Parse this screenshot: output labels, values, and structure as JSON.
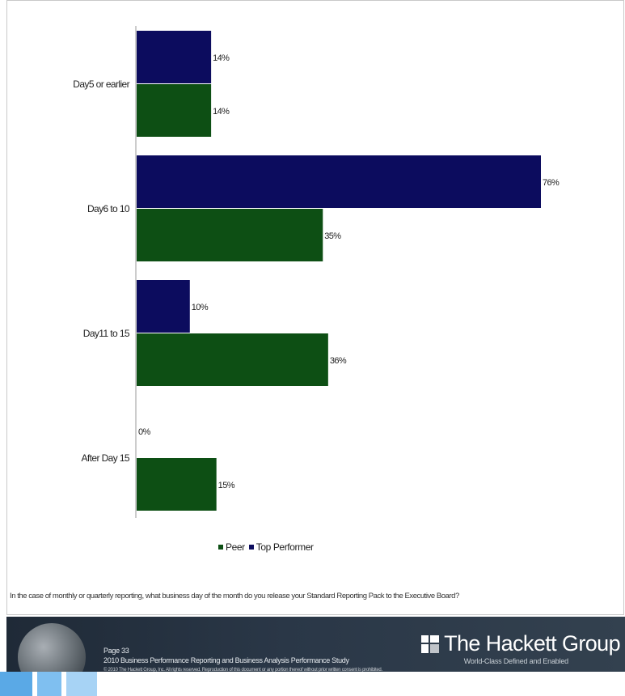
{
  "chart_data": {
    "type": "bar",
    "orientation": "horizontal",
    "categories": [
      "Day5 or earlier",
      "Day6 to 10",
      "Day11 to 15",
      "After Day 15"
    ],
    "series": [
      {
        "name": "Top Performer",
        "color": "#0c0c5e",
        "values": [
          14,
          76,
          10,
          0
        ],
        "labels": [
          "14%",
          "76%",
          "10%",
          "0%"
        ]
      },
      {
        "name": "Peer",
        "color": "#0d4f14",
        "values": [
          14,
          35,
          36,
          15
        ],
        "labels": [
          "14%",
          "35%",
          "36%",
          "15%"
        ]
      }
    ],
    "xlim": [
      0,
      76
    ],
    "grid": false,
    "legend_position": "bottom-center",
    "question": "In the case of monthly or quarterly reporting, what business day of the month do you release your Standard Reporting Pack to the Executive Board?"
  },
  "legend": {
    "items": [
      {
        "label": "Peer",
        "color": "#0d4f14"
      },
      {
        "label": "Top Performer",
        "color": "#0c0c5e"
      }
    ]
  },
  "footer": {
    "page": "Page 33",
    "study": "2010 Business Performance Reporting and Business Analysis Performance Study",
    "copyright": "© 2010 The Hackett Group, Inc. All rights reserved. Reproduction of this document or any portion thereof without prior written consent is prohibited.",
    "brand": "The Hackett Group",
    "tagline": "World-Class Defined and Enabled"
  }
}
